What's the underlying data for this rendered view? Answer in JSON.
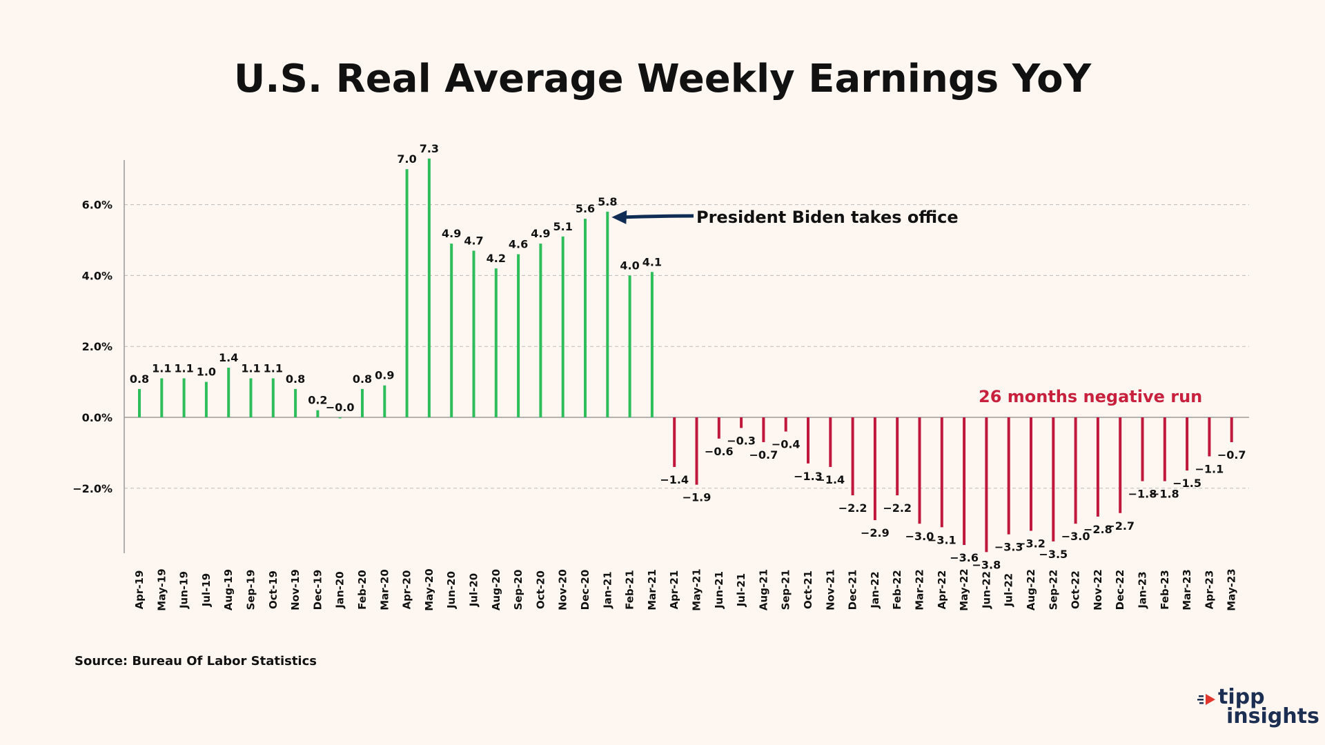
{
  "chart_data": {
    "type": "bar",
    "title": "U.S. Real Average Weekly Earnings YoY",
    "source": "Source: Bureau Of Labor Statistics",
    "y_ticks": [
      {
        "value": 6,
        "label": "6.0%"
      },
      {
        "value": 4,
        "label": "4.0%"
      },
      {
        "value": 2,
        "label": "2.0%"
      },
      {
        "value": 0,
        "label": "0.0%"
      },
      {
        "value": -2,
        "label": "−2.0%"
      }
    ],
    "ylim": [
      -3.8,
      7.2
    ],
    "grid": true,
    "colors": {
      "positive": "#2dbd5a",
      "negative": "#c0183c",
      "arrow": "#0f2c55",
      "annotation_red": "#c8213e"
    },
    "categories": [
      "Apr-19",
      "May-19",
      "Jun-19",
      "Jul-19",
      "Aug-19",
      "Sep-19",
      "Oct-19",
      "Nov-19",
      "Dec-19",
      "Jan-20",
      "Feb-20",
      "Mar-20",
      "Apr-20",
      "May-20",
      "Jun-20",
      "Jul-20",
      "Aug-20",
      "Sep-20",
      "Oct-20",
      "Nov-20",
      "Dec-20",
      "Jan-21",
      "Feb-21",
      "Mar-21",
      "Apr-21",
      "May-21",
      "Jun-21",
      "Jul-21",
      "Aug-21",
      "Sep-21",
      "Oct-21",
      "Nov-21",
      "Dec-21",
      "Jan-22",
      "Feb-22",
      "Mar-22",
      "Apr-22",
      "May-22",
      "Jun-22",
      "Jul-22",
      "Aug-22",
      "Sep-22",
      "Oct-22",
      "Nov-22",
      "Dec-22",
      "Jan-23",
      "Feb-23",
      "Mar-23",
      "Apr-23",
      "May-23"
    ],
    "values": [
      0.8,
      1.1,
      1.1,
      1.0,
      1.4,
      1.1,
      1.1,
      0.8,
      0.2,
      -0.0,
      0.8,
      0.9,
      7.0,
      7.3,
      4.9,
      4.7,
      4.2,
      4.6,
      4.9,
      5.1,
      5.6,
      5.8,
      4.0,
      4.1,
      -1.4,
      -1.9,
      -0.6,
      -0.3,
      -0.7,
      -0.4,
      -1.3,
      -1.4,
      -2.2,
      -2.9,
      -2.2,
      -3.0,
      -3.1,
      -3.6,
      -3.8,
      -3.3,
      -3.2,
      -3.5,
      -3.0,
      -2.8,
      -2.7,
      -1.8,
      -1.8,
      -1.5,
      -1.1,
      -0.7
    ],
    "value_labels": [
      "0.8",
      "1.1",
      "1.1",
      "1.0",
      "1.4",
      "1.1",
      "1.1",
      "0.8",
      "0.2",
      "−0.0",
      "0.8",
      "0.9",
      "7.0",
      "7.3",
      "4.9",
      "4.7",
      "4.2",
      "4.6",
      "4.9",
      "5.1",
      "5.6",
      "5.8",
      "4.0",
      "4.1",
      "−1.4",
      "−1.9",
      "−0.6",
      "−0.3",
      "−0.7",
      "−0.4",
      "−1.3",
      "−1.4",
      "−2.2",
      "−2.9",
      "−2.2",
      "−3.0",
      "−3.1",
      "−3.6",
      "−3.8",
      "−3.3",
      "−3.2",
      "−3.5",
      "−3.0",
      "−2.8",
      "−2.7",
      "−1.8",
      "−1.8",
      "−1.5",
      "−1.1",
      "−0.7"
    ],
    "annotations": [
      {
        "text": "President Biden takes office",
        "category": "Jan-21"
      },
      {
        "text": "26 months negative run"
      }
    ]
  },
  "logo": {
    "line1": "tipp",
    "line2": "insights"
  }
}
